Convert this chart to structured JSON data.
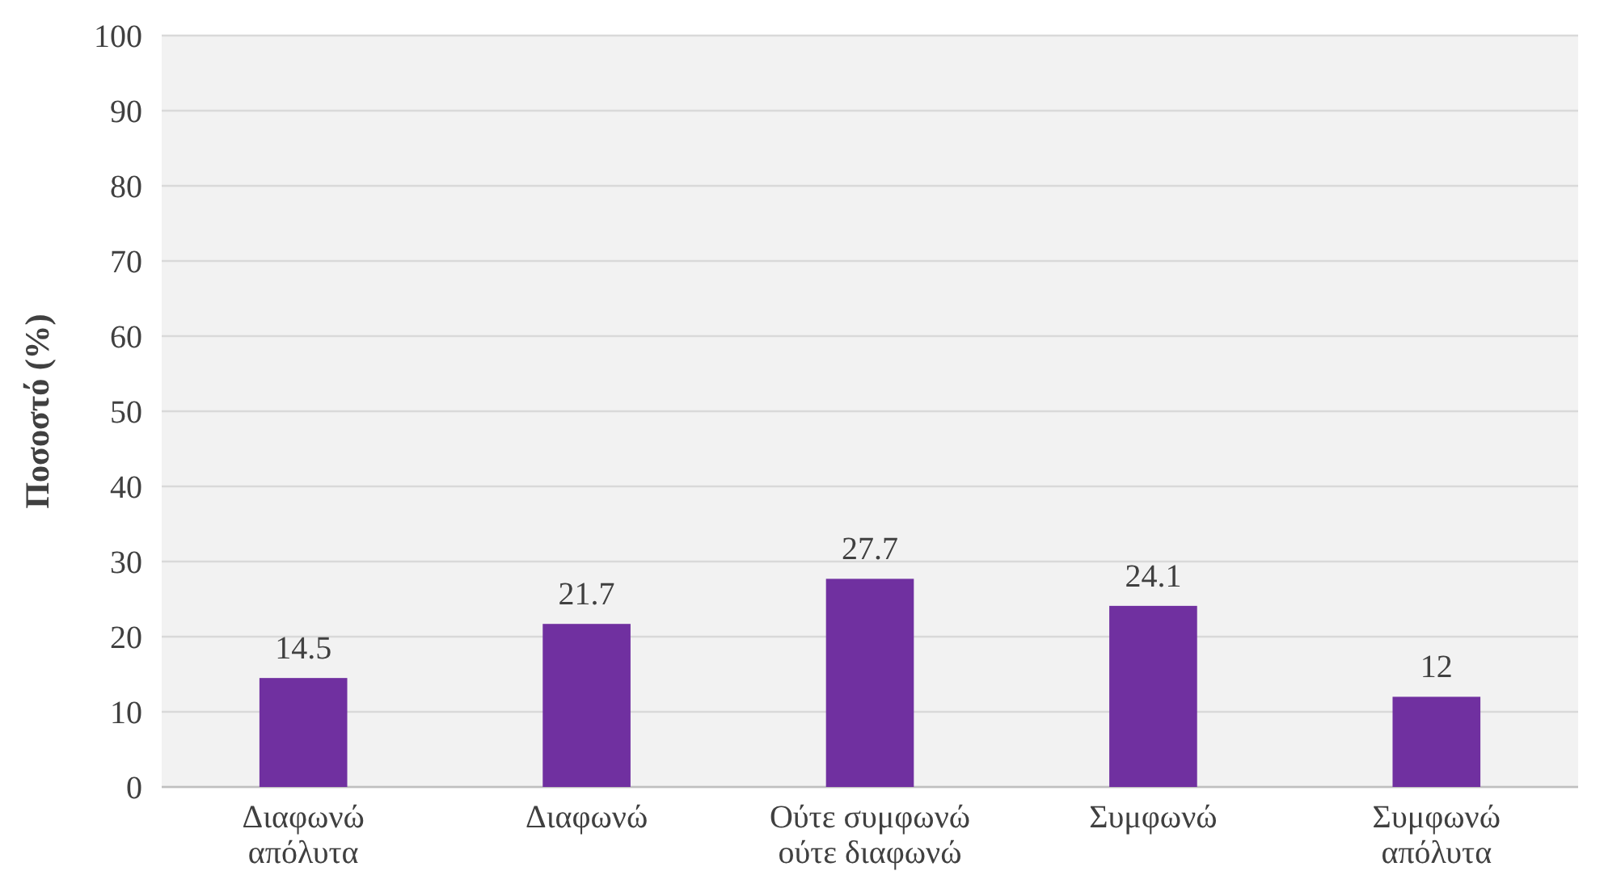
{
  "chart_data": {
    "type": "bar",
    "ylabel": "Ποσοστό (%)",
    "categories": [
      "Διαφωνώ απόλυτα",
      "Διαφωνώ",
      "Ούτε συμφωνώ ούτε διαφωνώ",
      "Συμφωνώ",
      "Συμφωνώ απόλυτα"
    ],
    "values": [
      14.5,
      21.7,
      27.7,
      24.1,
      12
    ],
    "color": "#7030a0",
    "ylim": [
      0,
      100
    ],
    "yticks": [
      0,
      10,
      20,
      30,
      40,
      50,
      60,
      70,
      80,
      90,
      100
    ],
    "grid": "y",
    "data_labels": true
  }
}
